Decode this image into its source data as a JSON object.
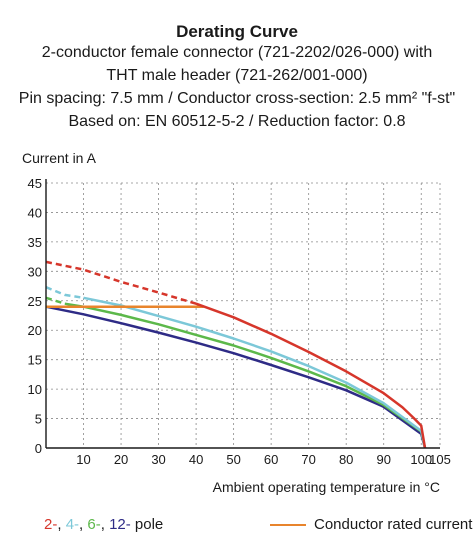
{
  "titles": [
    "Derating Curve",
    "2-conductor female connector (721-2202/026-000) with",
    "THT male header (721-262/001-000)",
    "Pin spacing: 7.5 mm / Conductor cross-section: 2.5 mm² \"f-st\"",
    "Based on: EN 60512-5-2 / Reduction factor: 0.8"
  ],
  "legend": {
    "poles": [
      {
        "text": "2-",
        "color": "#d6362b"
      },
      {
        "text": "4-",
        "color": "#7cc8d8"
      },
      {
        "text": "6-",
        "color": "#5cb84a"
      },
      {
        "text": "12-",
        "color": "#2e2b86"
      }
    ],
    "poles_suffix": " pole",
    "rated_current_label": "Conductor rated current",
    "rated_current_color": "#e8842c"
  },
  "chart_data": {
    "type": "line",
    "ylabel": "Current in A",
    "xlabel": "Ambient operating temperature in °C",
    "xlim": [
      0,
      105
    ],
    "ylim": [
      0,
      45
    ],
    "xticks": [
      10,
      20,
      30,
      40,
      50,
      60,
      70,
      80,
      90,
      100,
      105
    ],
    "yticks": [
      0,
      5,
      10,
      15,
      20,
      25,
      30,
      35,
      40,
      45
    ],
    "grid": true,
    "series": [
      {
        "name": "2-pole",
        "color": "#d6362b",
        "dashed_segment": [
          [
            0,
            31.6
          ],
          [
            10,
            30.3
          ],
          [
            20,
            28.2
          ],
          [
            30,
            26.4
          ],
          [
            40,
            24.5
          ]
        ],
        "values": [
          [
            40,
            24.5
          ],
          [
            50,
            22.2
          ],
          [
            60,
            19.4
          ],
          [
            70,
            16.3
          ],
          [
            80,
            13.0
          ],
          [
            90,
            9.3
          ],
          [
            95,
            6.9
          ],
          [
            98,
            5.1
          ],
          [
            100,
            3.8
          ],
          [
            101,
            0
          ]
        ]
      },
      {
        "name": "4-pole",
        "color": "#7cc8d8",
        "dashed_segment": [
          [
            0,
            27.3
          ],
          [
            5,
            26.0
          ],
          [
            10,
            25.5
          ]
        ],
        "values": [
          [
            10,
            25.5
          ],
          [
            20,
            24.2
          ],
          [
            30,
            22.4
          ],
          [
            40,
            20.6
          ],
          [
            50,
            18.6
          ],
          [
            60,
            16.4
          ],
          [
            70,
            13.9
          ],
          [
            80,
            11.1
          ],
          [
            90,
            7.6
          ],
          [
            100,
            2.9
          ],
          [
            101,
            0
          ]
        ]
      },
      {
        "name": "6-pole",
        "color": "#5cb84a",
        "dashed_segment": [
          [
            0,
            25.5
          ],
          [
            5,
            24.5
          ]
        ],
        "values": [
          [
            5,
            24.5
          ],
          [
            10,
            24.0
          ],
          [
            20,
            22.6
          ],
          [
            30,
            21.0
          ],
          [
            40,
            19.2
          ],
          [
            50,
            17.4
          ],
          [
            60,
            15.3
          ],
          [
            70,
            13.0
          ],
          [
            80,
            10.5
          ],
          [
            90,
            7.3
          ],
          [
            100,
            2.8
          ],
          [
            101,
            0
          ]
        ]
      },
      {
        "name": "12-pole",
        "color": "#2e2b86",
        "dashed_segment": [],
        "values": [
          [
            0,
            24.0
          ],
          [
            10,
            22.7
          ],
          [
            20,
            21.2
          ],
          [
            30,
            19.6
          ],
          [
            40,
            17.9
          ],
          [
            50,
            16.1
          ],
          [
            60,
            14.1
          ],
          [
            70,
            12.0
          ],
          [
            80,
            9.8
          ],
          [
            90,
            7.0
          ],
          [
            100,
            2.4
          ],
          [
            101,
            0
          ]
        ]
      },
      {
        "name": "Conductor rated current",
        "color": "#e8842c",
        "dashed_segment": [],
        "values": [
          [
            0,
            24.0
          ],
          [
            42,
            24.0
          ]
        ]
      }
    ]
  }
}
